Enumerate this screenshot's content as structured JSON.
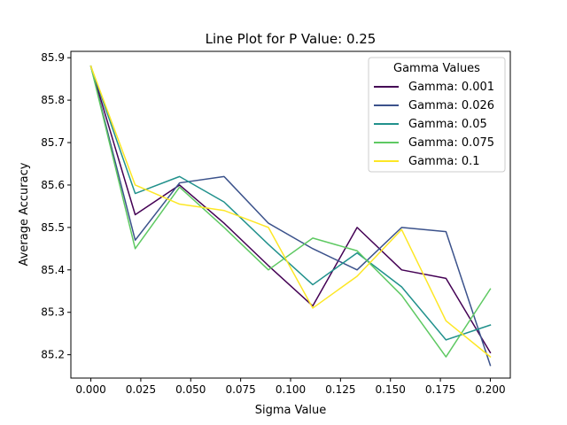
{
  "chart_data": {
    "type": "line",
    "title": "Line Plot for P Value: 0.25",
    "xlabel": "Sigma Value",
    "ylabel": "Average Accuracy",
    "xlim": [
      -0.01,
      0.21
    ],
    "ylim": [
      85.145,
      85.915
    ],
    "x": [
      0.0,
      0.0222,
      0.0444,
      0.0667,
      0.0889,
      0.1111,
      0.1333,
      0.1556,
      0.1778,
      0.2
    ],
    "x_ticks": [
      "0.000",
      "0.025",
      "0.050",
      "0.075",
      "0.100",
      "0.125",
      "0.150",
      "0.175",
      "0.200"
    ],
    "x_tick_values": [
      0.0,
      0.025,
      0.05,
      0.075,
      0.1,
      0.125,
      0.15,
      0.175,
      0.2
    ],
    "y_ticks": [
      "85.2",
      "85.3",
      "85.4",
      "85.5",
      "85.6",
      "85.7",
      "85.8",
      "85.9"
    ],
    "y_tick_values": [
      85.2,
      85.3,
      85.4,
      85.5,
      85.6,
      85.7,
      85.8,
      85.9
    ],
    "grid": false,
    "legend": {
      "title": "Gamma Values",
      "placement": "top-right"
    },
    "series": [
      {
        "name": "Gamma: 0.001",
        "color": "#440154",
        "values": [
          85.88,
          85.53,
          85.6,
          85.51,
          85.41,
          85.315,
          85.5,
          85.4,
          85.38,
          85.205
        ]
      },
      {
        "name": "Gamma: 0.026",
        "color": "#3b528b",
        "values": [
          85.88,
          85.47,
          85.605,
          85.62,
          85.51,
          85.45,
          85.4,
          85.5,
          85.49,
          85.175
        ]
      },
      {
        "name": "Gamma: 0.05",
        "color": "#21918c",
        "values": [
          85.88,
          85.58,
          85.62,
          85.56,
          85.46,
          85.365,
          85.44,
          85.36,
          85.235,
          85.27
        ]
      },
      {
        "name": "Gamma: 0.075",
        "color": "#5ec962",
        "values": [
          85.88,
          85.45,
          85.595,
          85.5,
          85.4,
          85.475,
          85.445,
          85.34,
          85.195,
          85.355
        ]
      },
      {
        "name": "Gamma: 0.1",
        "color": "#fde725",
        "values": [
          85.88,
          85.6,
          85.555,
          85.54,
          85.5,
          85.31,
          85.385,
          85.495,
          85.28,
          85.195
        ]
      }
    ]
  }
}
